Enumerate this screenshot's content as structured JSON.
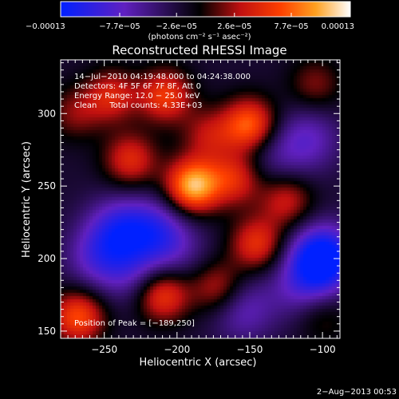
{
  "chart_data": {
    "type": "heatmap",
    "title": "Reconstructed RHESSI Image",
    "xlabel": "Heliocentric X (arcsec)",
    "ylabel": "Heliocentric Y (arcsec)",
    "xlim": [
      -280,
      -88
    ],
    "ylim": [
      145,
      337
    ],
    "x_ticks": [
      -250,
      -200,
      -150,
      -100
    ],
    "y_ticks": [
      150,
      200,
      250,
      300
    ],
    "x_tick_labels": [
      "−250",
      "−200",
      "−150",
      "−100"
    ],
    "y_tick_labels": [
      "150",
      "200",
      "250",
      "300"
    ],
    "colorbar": {
      "tick_values": [
        -0.00013,
        -7.7e-05,
        -2.6e-05,
        2.6e-05,
        7.7e-05,
        0.00013
      ],
      "tick_labels": [
        "−0.00013",
        "−7.7e−05",
        "−2.6e−05",
        "2.6e−05",
        "7.7e−05",
        "0.00013"
      ],
      "range": [
        -0.00013,
        0.00013
      ],
      "unit_label": "(photons cm⁻² s⁻¹ asec⁻²)",
      "colors": [
        "#0020ff",
        "#6020c0",
        "#000000",
        "#c01010",
        "#ff4000",
        "#ffa020",
        "#ffffff"
      ]
    },
    "annotations": {
      "time_range": "14−Jul−2010 04:19:48.000 to 04:24:38.000",
      "detectors": "Detectors: 4F 5F 6F 7F 8F, Att 0",
      "energy_range": "Energy Range: 12.0 − 25.0 keV",
      "clean_counts": "Clean     Total counts: 4.33E+03",
      "peak_position": "Position of Peak = [−189,250]"
    },
    "peak": {
      "x": -189,
      "y": 250
    },
    "bright_sources": [
      {
        "x": -189,
        "y": 250,
        "intensity": 0.00013
      },
      {
        "x": -150,
        "y": 292,
        "intensity": 0.0001
      },
      {
        "x": -208,
        "y": 312,
        "intensity": 8e-05
      },
      {
        "x": -232,
        "y": 268,
        "intensity": 7e-05
      },
      {
        "x": -245,
        "y": 312,
        "intensity": 6.5e-05
      },
      {
        "x": -160,
        "y": 255,
        "intensity": 7e-05
      },
      {
        "x": -178,
        "y": 285,
        "intensity": 5e-05
      },
      {
        "x": -145,
        "y": 210,
        "intensity": 7.5e-05
      },
      {
        "x": -125,
        "y": 240,
        "intensity": 6e-05
      },
      {
        "x": -210,
        "y": 175,
        "intensity": 8.5e-05
      },
      {
        "x": -172,
        "y": 180,
        "intensity": 6e-05
      },
      {
        "x": -268,
        "y": 160,
        "intensity": 9e-05
      },
      {
        "x": -270,
        "y": 300,
        "intensity": 4e-05
      },
      {
        "x": -105,
        "y": 320,
        "intensity": 4e-05
      },
      {
        "x": -100,
        "y": 160,
        "intensity": 3e-05
      }
    ],
    "negative_regions": [
      {
        "x": -240,
        "y": 220,
        "intensity": -7e-05
      },
      {
        "x": -255,
        "y": 200,
        "intensity": -5e-05
      },
      {
        "x": -215,
        "y": 220,
        "intensity": -6e-05
      },
      {
        "x": -110,
        "y": 282,
        "intensity": -5e-05
      },
      {
        "x": -135,
        "y": 270,
        "intensity": -3e-05
      },
      {
        "x": -100,
        "y": 200,
        "intensity": -0.00013
      },
      {
        "x": -115,
        "y": 180,
        "intensity": -4e-05
      },
      {
        "x": -155,
        "y": 165,
        "intensity": -5e-05
      },
      {
        "x": -230,
        "y": 190,
        "intensity": -4e-05
      },
      {
        "x": -200,
        "y": 205,
        "intensity": -3e-05
      }
    ]
  },
  "footer": {
    "timestamp": "2−Aug−2013 00:53"
  }
}
